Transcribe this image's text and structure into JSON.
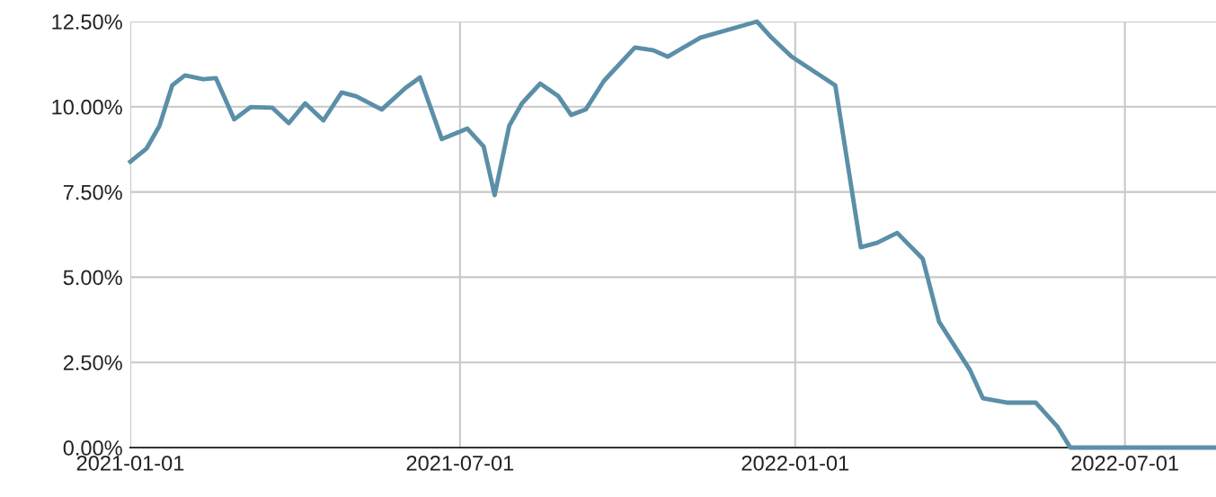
{
  "chart_data": {
    "type": "line",
    "xlim": [
      "2021-01-01",
      "2022-08-20"
    ],
    "ylim": [
      0,
      12.5
    ],
    "xticks": [
      "2021-01-01",
      "2021-07-01",
      "2022-01-01",
      "2022-07-01"
    ],
    "yticks": [
      {
        "value": 0,
        "label": "0.00%"
      },
      {
        "value": 2.5,
        "label": "2.50%"
      },
      {
        "value": 5,
        "label": "5.00%"
      },
      {
        "value": 7.5,
        "label": "7.50%"
      },
      {
        "value": 10,
        "label": "10.00%"
      },
      {
        "value": 12.5,
        "label": "12.50%"
      }
    ],
    "grid": true,
    "line_style": "solid",
    "series": [
      {
        "color": "#5b8fa8",
        "x": [
          "2021-01-01",
          "2021-01-10",
          "2021-01-17",
          "2021-01-24",
          "2021-01-31",
          "2021-02-10",
          "2021-02-17",
          "2021-02-27",
          "2021-03-08",
          "2021-03-20",
          "2021-03-29",
          "2021-04-07",
          "2021-04-17",
          "2021-04-27",
          "2021-05-05",
          "2021-05-19",
          "2021-06-01",
          "2021-06-09",
          "2021-06-21",
          "2021-07-05",
          "2021-07-14",
          "2021-07-20",
          "2021-07-28",
          "2021-08-04",
          "2021-08-14",
          "2021-08-24",
          "2021-08-31",
          "2021-09-08",
          "2021-09-18",
          "2021-10-05",
          "2021-10-15",
          "2021-10-23",
          "2021-11-10",
          "2021-12-11",
          "2021-12-19",
          "2021-12-30",
          "2022-01-23",
          "2022-02-06",
          "2022-02-15",
          "2022-02-26",
          "2022-03-12",
          "2022-03-21",
          "2022-04-07",
          "2022-04-14",
          "2022-04-27",
          "2022-05-13",
          "2022-05-25",
          "2022-06-01",
          "2022-08-20"
        ],
        "values": [
          8.39,
          8.78,
          9.44,
          10.63,
          10.92,
          10.81,
          10.84,
          9.63,
          9.99,
          9.97,
          9.52,
          10.1,
          9.6,
          10.42,
          10.31,
          9.92,
          10.55,
          10.86,
          9.05,
          9.36,
          8.83,
          7.41,
          9.44,
          10.1,
          10.68,
          10.31,
          9.76,
          9.92,
          10.76,
          11.74,
          11.66,
          11.47,
          12.03,
          12.5,
          12.03,
          11.47,
          10.63,
          5.88,
          6.01,
          6.3,
          5.54,
          3.69,
          2.27,
          1.45,
          1.32,
          1.32,
          0.61,
          0,
          0
        ]
      }
    ]
  }
}
